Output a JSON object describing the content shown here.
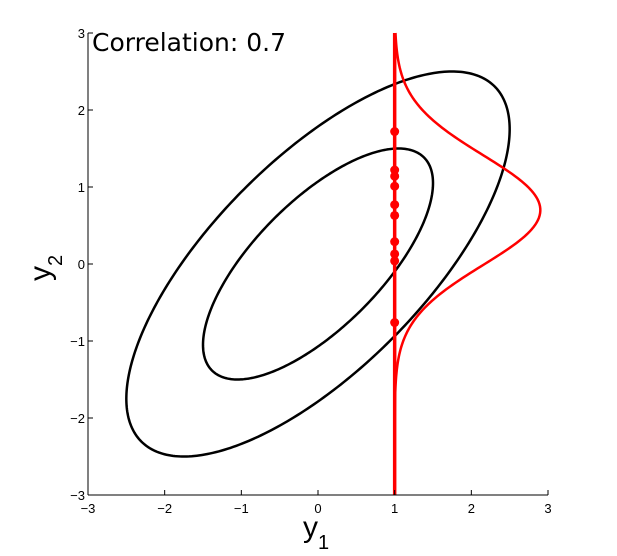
{
  "chart_data": {
    "type": "line",
    "title": "",
    "annotation": "Correlation: 0.7",
    "xlabel": {
      "base": "y",
      "subscript": "1"
    },
    "ylabel": {
      "base": "y",
      "subscript": "2"
    },
    "xlim": [
      -3,
      3
    ],
    "ylim": [
      -3,
      3
    ],
    "xticks": [
      -3,
      -2,
      -1,
      0,
      1,
      2,
      3
    ],
    "yticks": [
      -3,
      -2,
      -1,
      0,
      1,
      2,
      3
    ],
    "xtick_labels": [
      "−3",
      "−2",
      "−1",
      "0",
      "1",
      "2",
      "3"
    ],
    "ytick_labels": [
      "−3",
      "−2",
      "−1",
      "0",
      "1",
      "2",
      "3"
    ],
    "grid": false,
    "correlation": 0.7,
    "contours": [
      {
        "name": "",
        "mahalanobis_radius": 1.5,
        "color": "#000000"
      },
      {
        "name": "",
        "mahalanobis_radius": 2.5,
        "color": "#000000"
      }
    ],
    "conditioning": {
      "x": 1,
      "color": "#ff0000"
    },
    "conditional_density": {
      "mean": 0.7,
      "std": 0.714,
      "peak_x": 2.9,
      "color": "#ff0000"
    },
    "samples": {
      "x": 1,
      "y": [
        1.72,
        1.22,
        1.14,
        1.01,
        0.77,
        0.63,
        0.29,
        0.13,
        0.04,
        -0.76
      ],
      "color": "#ff0000"
    }
  }
}
